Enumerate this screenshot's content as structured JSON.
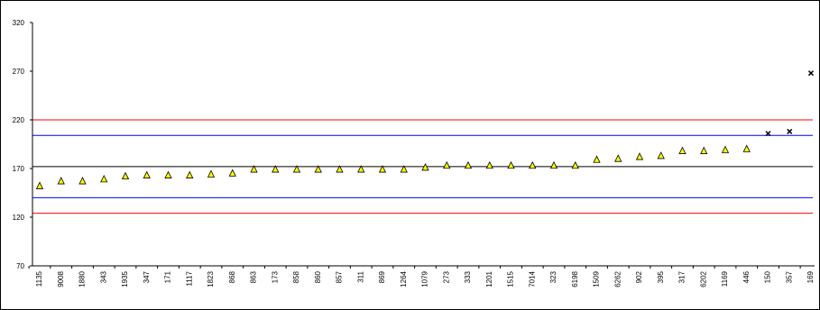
{
  "chart_data": {
    "type": "scatter",
    "title": "",
    "xlabel": "",
    "ylabel": "",
    "ylim": [
      70,
      320
    ],
    "yticks": [
      70,
      120,
      170,
      220,
      270,
      320
    ],
    "grid": false,
    "legend": "none",
    "categories": [
      "1135",
      "9008",
      "1880",
      "343",
      "1935",
      "347",
      "171",
      "1117",
      "1823",
      "868",
      "863",
      "173",
      "858",
      "860",
      "857",
      "311",
      "869",
      "1264",
      "1079",
      "273",
      "333",
      "1201",
      "1515",
      "7014",
      "323",
      "6198",
      "1509",
      "6262",
      "902",
      "395",
      "317",
      "6202",
      "1169",
      "446",
      "150",
      "357",
      "169"
    ],
    "series": [
      {
        "marker": "triangle",
        "color": "#ffff00",
        "values": [
          152,
          157,
          157,
          159,
          162,
          163,
          163,
          163,
          164,
          165,
          169,
          169,
          169,
          169,
          169,
          169,
          169,
          169,
          171,
          173,
          173,
          173,
          173,
          173,
          173,
          173,
          179,
          180,
          182,
          183,
          188,
          188,
          189,
          190,
          null,
          null,
          null
        ]
      },
      {
        "marker": "x",
        "color": "#000000",
        "values": [
          null,
          null,
          null,
          null,
          null,
          null,
          null,
          null,
          null,
          null,
          null,
          null,
          null,
          null,
          null,
          null,
          null,
          null,
          null,
          null,
          null,
          null,
          null,
          null,
          null,
          null,
          null,
          null,
          null,
          null,
          null,
          null,
          null,
          null,
          206,
          208,
          268
        ]
      }
    ],
    "reference_lines": [
      {
        "value": 220,
        "color": "#ff0000"
      },
      {
        "value": 204,
        "color": "#0000ff"
      },
      {
        "value": 172,
        "color": "#000000"
      },
      {
        "value": 140,
        "color": "#0000ff"
      },
      {
        "value": 124,
        "color": "#ff0000"
      }
    ]
  }
}
